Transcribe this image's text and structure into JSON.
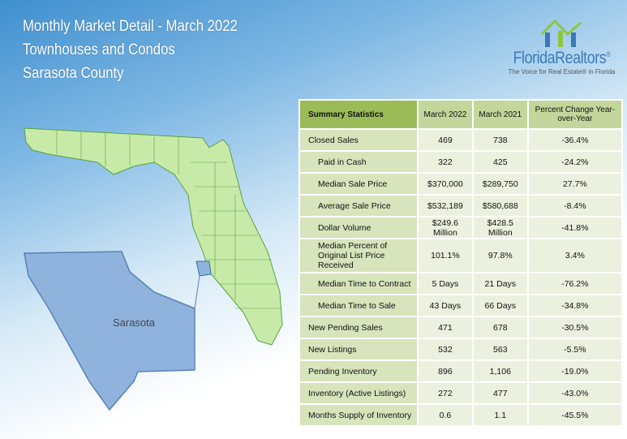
{
  "header": {
    "title": "Monthly Market Detail - March 2022",
    "subtitle": "Townhouses and Condos",
    "region": "Sarasota County"
  },
  "logo": {
    "name": "FloridaRealtors",
    "mark": "®",
    "tagline": "The Voice for Real Estate® in Florida"
  },
  "map": {
    "label": "Sarasota"
  },
  "table": {
    "columns": [
      "Summary Statistics",
      "March 2022",
      "March 2021",
      "Percent Change Year-over-Year"
    ],
    "rows": [
      [
        "Closed Sales",
        "469",
        "738",
        "-36.4%"
      ],
      [
        "Paid in Cash",
        "322",
        "425",
        "-24.2%"
      ],
      [
        "Median Sale Price",
        "$370,000",
        "$289,750",
        "27.7%"
      ],
      [
        "Average Sale Price",
        "$532,189",
        "$580,688",
        "-8.4%"
      ],
      [
        "Dollar Volume",
        "$249.6 Million",
        "$428.5 Million",
        "-41.8%"
      ],
      [
        "Median Percent of Original List Price Received",
        "101.1%",
        "97.8%",
        "3.4%"
      ],
      [
        "Median Time to Contract",
        "5 Days",
        "21 Days",
        "-76.2%"
      ],
      [
        "Median Time to Sale",
        "43 Days",
        "66 Days",
        "-34.8%"
      ],
      [
        "New Pending Sales",
        "471",
        "678",
        "-30.5%"
      ],
      [
        "New Listings",
        "532",
        "563",
        "-5.5%"
      ],
      [
        "Pending Inventory",
        "896",
        "1,106",
        "-19.0%"
      ],
      [
        "Inventory (Active Listings)",
        "272",
        "477",
        "-43.0%"
      ],
      [
        "Months Supply of Inventory",
        "0.6",
        "1.1",
        "-45.5%"
      ]
    ]
  }
}
